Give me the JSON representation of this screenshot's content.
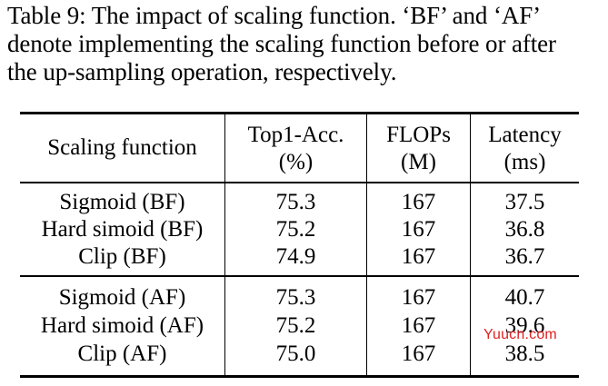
{
  "caption": {
    "line1": "Table 9: The impact of scaling function. ‘BF’ and ‘AF’",
    "line2": "denote implementing the scaling function before or after",
    "line3": "the up-sampling operation, respectively."
  },
  "table": {
    "header": {
      "col1": "Scaling function",
      "col2_line1": "Top1-Acc.",
      "col2_line2": "(%)",
      "col3_line1": "FLOPs",
      "col3_line2": "(M)",
      "col4_line1": "Latency",
      "col4_line2": "(ms)"
    },
    "group1": [
      {
        "name": "Sigmoid (BF)",
        "acc": "75.3",
        "flops": "167",
        "latency": "37.5"
      },
      {
        "name": "Hard simoid (BF)",
        "acc": "75.2",
        "flops": "167",
        "latency": "36.8"
      },
      {
        "name": "Clip (BF)",
        "acc": "74.9",
        "flops": "167",
        "latency": "36.7"
      }
    ],
    "group2": [
      {
        "name": "Sigmoid (AF)",
        "acc": "75.3",
        "flops": "167",
        "latency": "40.7"
      },
      {
        "name": "Hard simoid (AF)",
        "acc": "75.2",
        "flops": "167",
        "latency": "39.6"
      },
      {
        "name": "Clip (AF)",
        "acc": "75.0",
        "flops": "167",
        "latency": "38.5"
      }
    ]
  },
  "watermark": "Yuucn.com"
}
